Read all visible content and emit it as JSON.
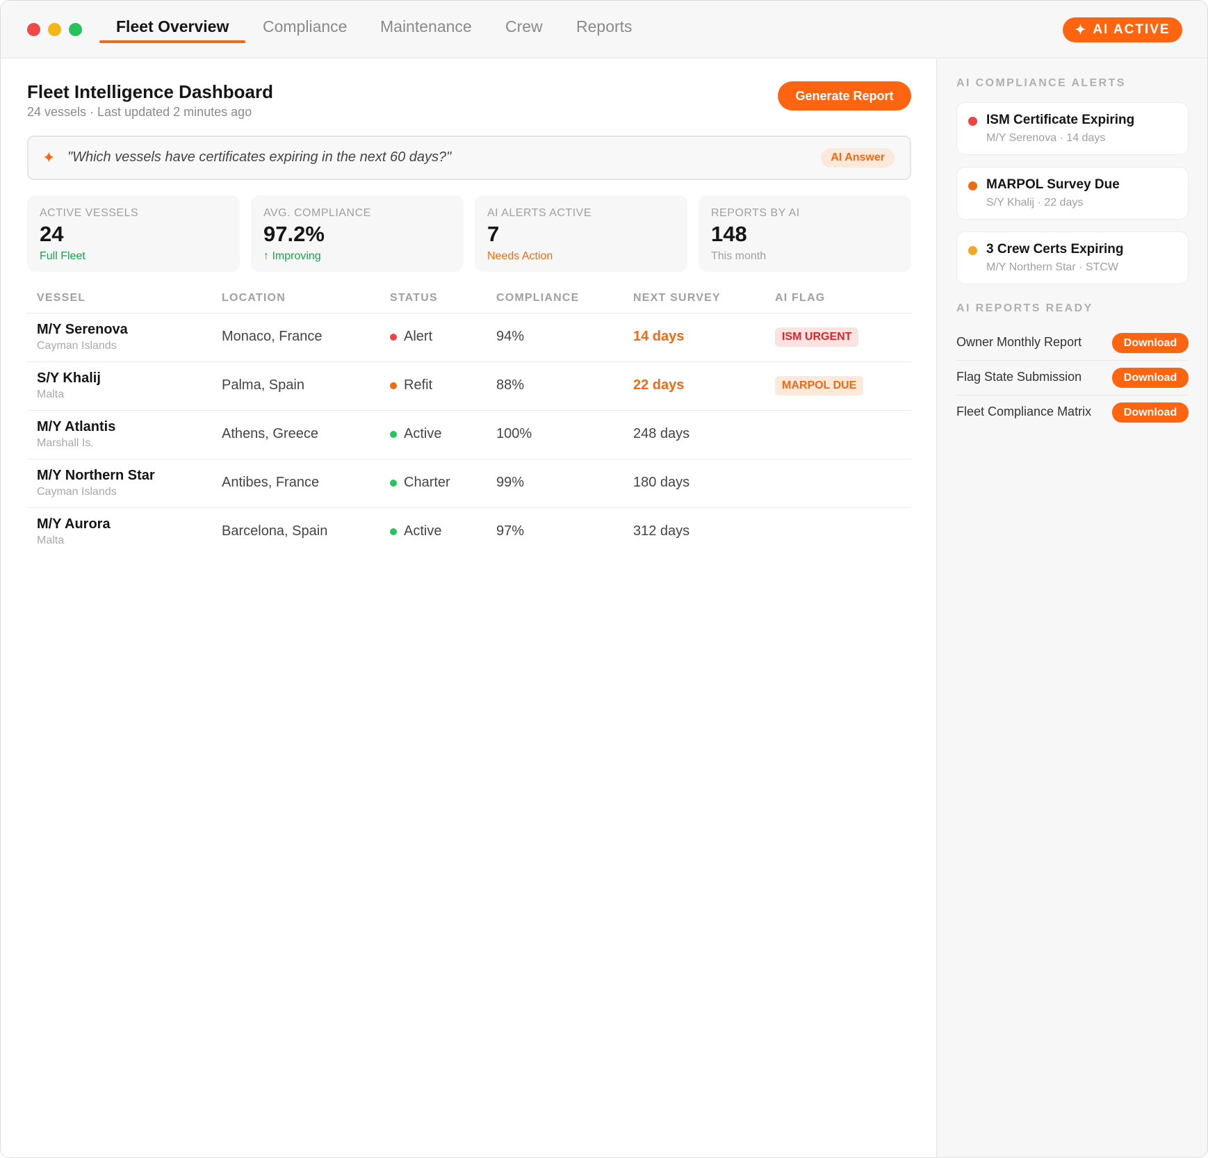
{
  "colors": {
    "accent": "#ff6411",
    "alert_red": "#ef4444",
    "refit_orange": "#f06a14",
    "active_green": "#22c55e",
    "amber": "#f5a623",
    "positive_green": "#16a34a"
  },
  "nav": {
    "tabs": [
      {
        "label": "Fleet Overview",
        "active": true
      },
      {
        "label": "Compliance",
        "active": false
      },
      {
        "label": "Maintenance",
        "active": false
      },
      {
        "label": "Crew",
        "active": false
      },
      {
        "label": "Reports",
        "active": false
      }
    ],
    "ai_status": {
      "icon": "sparkle-icon",
      "label": "AI ACTIVE"
    }
  },
  "header": {
    "title": "Fleet Intelligence Dashboard",
    "subtitle": "24 vessels · Last updated 2 minutes ago",
    "generate_button": "Generate Report"
  },
  "ai_query": {
    "icon": "sparkle-icon",
    "text": "\"Which vessels have certificates expiring in the next 60 days?\"",
    "badge": "AI Answer"
  },
  "stats": [
    {
      "label": "ACTIVE VESSELS",
      "value": "24",
      "note": "Full Fleet",
      "note_color": "#16a34a"
    },
    {
      "label": "AVG. COMPLIANCE",
      "value": "97.2%",
      "note": "↑ Improving",
      "note_color": "#16a34a"
    },
    {
      "label": "AI ALERTS ACTIVE",
      "value": "7",
      "note": "Needs Action",
      "note_color": "#f06a14"
    },
    {
      "label": "REPORTS BY AI",
      "value": "148",
      "note": "This month",
      "note_color": "#a0a0a0"
    }
  ],
  "table": {
    "columns": [
      "VESSEL",
      "LOCATION",
      "STATUS",
      "COMPLIANCE",
      "NEXT SURVEY",
      "AI FLAG"
    ],
    "rows": [
      {
        "name": "M/Y Serenova",
        "flag_state": "Cayman Islands",
        "location": "Monaco, France",
        "status": "Alert",
        "status_color": "#ef4444",
        "compliance": "94%",
        "next_survey": "14 days",
        "urgent": true,
        "ai_flag": "ISM URGENT",
        "ai_flag_bg": "#fde2e2",
        "ai_flag_color": "#dc2626"
      },
      {
        "name": "S/Y Khalij",
        "flag_state": "Malta",
        "location": "Palma, Spain",
        "status": "Refit",
        "status_color": "#f06a14",
        "compliance": "88%",
        "next_survey": "22 days",
        "urgent": true,
        "ai_flag": "MARPOL DUE",
        "ai_flag_bg": "#fde8dc",
        "ai_flag_color": "#f06a14"
      },
      {
        "name": "M/Y Atlantis",
        "flag_state": "Marshall Is.",
        "location": "Athens, Greece",
        "status": "Active",
        "status_color": "#22c55e",
        "compliance": "100%",
        "next_survey": "248 days",
        "urgent": false,
        "ai_flag": ""
      },
      {
        "name": "M/Y Northern Star",
        "flag_state": "Cayman Islands",
        "location": "Antibes, France",
        "status": "Charter",
        "status_color": "#22c55e",
        "compliance": "99%",
        "next_survey": "180 days",
        "urgent": false,
        "ai_flag": ""
      },
      {
        "name": "M/Y Aurora",
        "flag_state": "Malta",
        "location": "Barcelona, Spain",
        "status": "Active",
        "status_color": "#22c55e",
        "compliance": "97%",
        "next_survey": "312 days",
        "urgent": false,
        "ai_flag": ""
      }
    ]
  },
  "sidebar": {
    "alerts_heading": "AI COMPLIANCE ALERTS",
    "alerts": [
      {
        "title": "ISM Certificate Expiring",
        "subtitle": "M/Y Serenova · 14 days",
        "dot_color": "#ef4444"
      },
      {
        "title": "MARPOL Survey Due",
        "subtitle": "S/Y Khalij · 22 days",
        "dot_color": "#f06a14"
      },
      {
        "title": "3 Crew Certs Expiring",
        "subtitle": "M/Y Northern Star · STCW",
        "dot_color": "#f5a623"
      }
    ],
    "reports_heading": "AI REPORTS READY",
    "reports": [
      {
        "name": "Owner Monthly Report",
        "button": "Download"
      },
      {
        "name": "Flag State Submission",
        "button": "Download"
      },
      {
        "name": "Fleet Compliance Matrix",
        "button": "Download"
      }
    ]
  }
}
